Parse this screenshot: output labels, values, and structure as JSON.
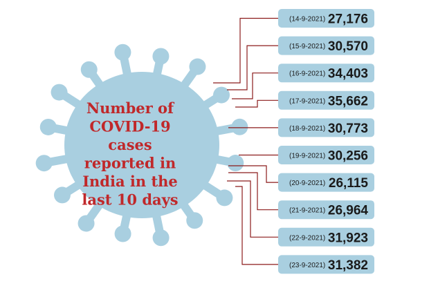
{
  "title_lines": [
    "Number of",
    "COVID-19",
    "cases",
    "reported in",
    "India in the",
    "last 10 days"
  ],
  "items": [
    {
      "date": "(14-9-2021)",
      "cases": "27,176"
    },
    {
      "date": "(15-9-2021)",
      "cases": "30,570"
    },
    {
      "date": "(16-9-2021)",
      "cases": "34,403"
    },
    {
      "date": "(17-9-2021)",
      "cases": "35,662"
    },
    {
      "date": "(18-9-2021)",
      "cases": "30,773"
    },
    {
      "date": "(19-9-2021)",
      "cases": "30,256"
    },
    {
      "date": "(20-9-2021)",
      "cases": "26,115"
    },
    {
      "date": "(21-9-2021)",
      "cases": "26,964"
    },
    {
      "date": "(22-9-2021)",
      "cases": "31,923"
    },
    {
      "date": "(23-9-2021)",
      "cases": "31,382"
    }
  ]
}
